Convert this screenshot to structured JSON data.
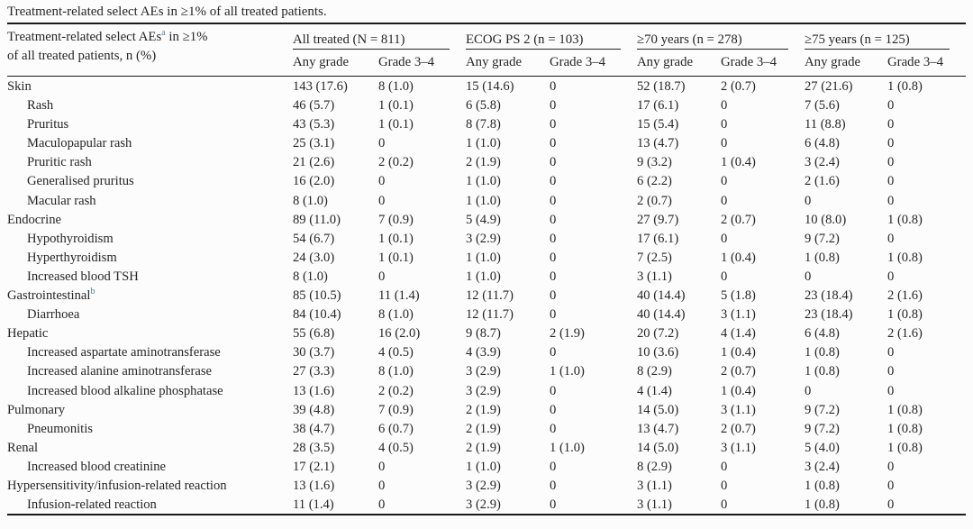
{
  "caption": "Treatment-related select AEs in ≥1% of all treated patients.",
  "table": {
    "row_header": {
      "text_before_sup": "Treatment-related select AEs",
      "sup": "a",
      "text_after_sup": " in ≥1%",
      "line2": "of all treated patients, n (%)"
    },
    "groups": [
      {
        "label": "All treated (N = 811)"
      },
      {
        "label": "ECOG PS 2 (n = 103)"
      },
      {
        "label": "≥70 years (n = 278)"
      },
      {
        "label": "≥75 years (n = 125)"
      }
    ],
    "subheaders": [
      "Any grade",
      "Grade 3–4"
    ],
    "rows": [
      {
        "label": "Skin",
        "indent": false,
        "sup": "",
        "cells": [
          "143 (17.6)",
          "8 (1.0)",
          "15 (14.6)",
          "0",
          "52 (18.7)",
          "2 (0.7)",
          "27 (21.6)",
          "1 (0.8)"
        ]
      },
      {
        "label": "Rash",
        "indent": true,
        "sup": "",
        "cells": [
          "46 (5.7)",
          "1 (0.1)",
          "6 (5.8)",
          "0",
          "17 (6.1)",
          "0",
          "7 (5.6)",
          "0"
        ]
      },
      {
        "label": "Pruritus",
        "indent": true,
        "sup": "",
        "cells": [
          "43 (5.3)",
          "1 (0.1)",
          "8 (7.8)",
          "0",
          "15 (5.4)",
          "0",
          "11 (8.8)",
          "0"
        ]
      },
      {
        "label": "Maculopapular rash",
        "indent": true,
        "sup": "",
        "cells": [
          "25 (3.1)",
          "0",
          "1 (1.0)",
          "0",
          "13 (4.7)",
          "0",
          "6 (4.8)",
          "0"
        ]
      },
      {
        "label": "Pruritic rash",
        "indent": true,
        "sup": "",
        "cells": [
          "21 (2.6)",
          "2 (0.2)",
          "2 (1.9)",
          "0",
          "9 (3.2)",
          "1 (0.4)",
          "3 (2.4)",
          "0"
        ]
      },
      {
        "label": "Generalised pruritus",
        "indent": true,
        "sup": "",
        "cells": [
          "16 (2.0)",
          "0",
          "1 (1.0)",
          "0",
          "6 (2.2)",
          "0",
          "2 (1.6)",
          "0"
        ]
      },
      {
        "label": "Macular rash",
        "indent": true,
        "sup": "",
        "cells": [
          "8 (1.0)",
          "0",
          "1 (1.0)",
          "0",
          "2 (0.7)",
          "0",
          "0",
          "0"
        ]
      },
      {
        "label": "Endocrine",
        "indent": false,
        "sup": "",
        "cells": [
          "89 (11.0)",
          "7 (0.9)",
          "5 (4.9)",
          "0",
          "27 (9.7)",
          "2 (0.7)",
          "10 (8.0)",
          "1 (0.8)"
        ]
      },
      {
        "label": "Hypothyroidism",
        "indent": true,
        "sup": "",
        "cells": [
          "54 (6.7)",
          "1 (0.1)",
          "3 (2.9)",
          "0",
          "17 (6.1)",
          "0",
          "9 (7.2)",
          "0"
        ]
      },
      {
        "label": "Hyperthyroidism",
        "indent": true,
        "sup": "",
        "cells": [
          "24 (3.0)",
          "1 (0.1)",
          "1 (1.0)",
          "0",
          "7 (2.5)",
          "1 (0.4)",
          "1 (0.8)",
          "1 (0.8)"
        ]
      },
      {
        "label": "Increased blood TSH",
        "indent": true,
        "sup": "",
        "cells": [
          "8 (1.0)",
          "0",
          "1 (1.0)",
          "0",
          "3 (1.1)",
          "0",
          "0",
          "0"
        ]
      },
      {
        "label": "Gastrointestinal",
        "indent": false,
        "sup": "b",
        "cells": [
          "85 (10.5)",
          "11 (1.4)",
          "12 (11.7)",
          "0",
          "40 (14.4)",
          "5 (1.8)",
          "23 (18.4)",
          "2 (1.6)"
        ]
      },
      {
        "label": "Diarrhoea",
        "indent": true,
        "sup": "",
        "cells": [
          "84 (10.4)",
          "8 (1.0)",
          "12 (11.7)",
          "0",
          "40 (14.4)",
          "3 (1.1)",
          "23 (18.4)",
          "1 (0.8)"
        ]
      },
      {
        "label": "Hepatic",
        "indent": false,
        "sup": "",
        "cells": [
          "55 (6.8)",
          "16 (2.0)",
          "9 (8.7)",
          "2 (1.9)",
          "20 (7.2)",
          "4 (1.4)",
          "6 (4.8)",
          "2 (1.6)"
        ]
      },
      {
        "label": "Increased aspartate aminotransferase",
        "indent": true,
        "sup": "",
        "cells": [
          "30 (3.7)",
          "4 (0.5)",
          "4 (3.9)",
          "0",
          "10 (3.6)",
          "1 (0.4)",
          "1 (0.8)",
          "0"
        ]
      },
      {
        "label": "Increased alanine aminotransferase",
        "indent": true,
        "sup": "",
        "cells": [
          "27 (3.3)",
          "8 (1.0)",
          "3 (2.9)",
          "1 (1.0)",
          "8 (2.9)",
          "2 (0.7)",
          "1 (0.8)",
          "0"
        ]
      },
      {
        "label": "Increased blood alkaline phosphatase",
        "indent": true,
        "sup": "",
        "cells": [
          "13 (1.6)",
          "2 (0.2)",
          "3 (2.9)",
          "0",
          "4 (1.4)",
          "1 (0.4)",
          "0",
          "0"
        ]
      },
      {
        "label": "Pulmonary",
        "indent": false,
        "sup": "",
        "cells": [
          "39 (4.8)",
          "7 (0.9)",
          "2 (1.9)",
          "0",
          "14 (5.0)",
          "3 (1.1)",
          "9 (7.2)",
          "1 (0.8)"
        ]
      },
      {
        "label": "Pneumonitis",
        "indent": true,
        "sup": "",
        "cells": [
          "38 (4.7)",
          "6 (0.7)",
          "2 (1.9)",
          "0",
          "13 (4.7)",
          "2 (0.7)",
          "9 (7.2)",
          "1 (0.8)"
        ]
      },
      {
        "label": "Renal",
        "indent": false,
        "sup": "",
        "cells": [
          "28 (3.5)",
          "4 (0.5)",
          "2 (1.9)",
          "1 (1.0)",
          "14 (5.0)",
          "3 (1.1)",
          "5 (4.0)",
          "1 (0.8)"
        ]
      },
      {
        "label": "Increased blood creatinine",
        "indent": true,
        "sup": "",
        "cells": [
          "17 (2.1)",
          "0",
          "1 (1.0)",
          "0",
          "8 (2.9)",
          "0",
          "3 (2.4)",
          "0"
        ]
      },
      {
        "label": "Hypersensitivity/infusion-related reaction",
        "indent": false,
        "sup": "",
        "cells": [
          "13 (1.6)",
          "0",
          "3 (2.9)",
          "0",
          "3 (1.1)",
          "0",
          "1 (0.8)",
          "0"
        ]
      },
      {
        "label": "Infusion-related reaction",
        "indent": true,
        "sup": "",
        "cells": [
          "11 (1.4)",
          "0",
          "3 (2.9)",
          "0",
          "3 (1.1)",
          "0",
          "1 (0.8)",
          "0"
        ]
      }
    ]
  }
}
